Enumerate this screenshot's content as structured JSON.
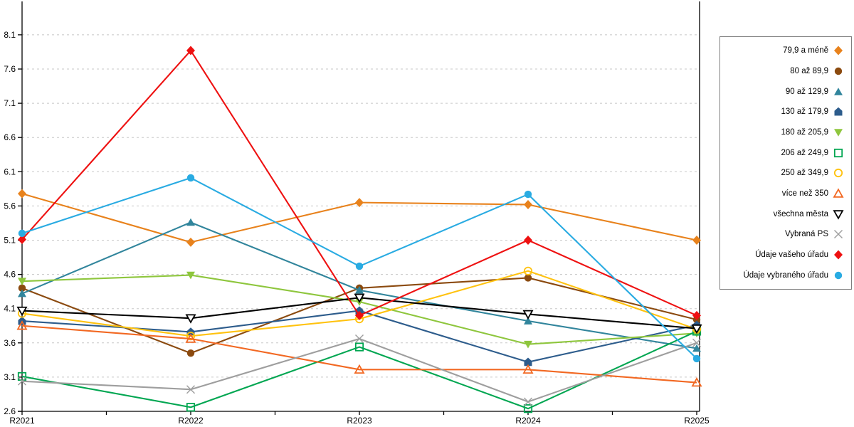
{
  "chart_data": {
    "type": "line",
    "title": "",
    "xlabel": "",
    "ylabel": "",
    "x_categories": [
      "R2021",
      "R2022",
      "R2023",
      "R2024",
      "R2025"
    ],
    "y_ticks": [
      2.6,
      3.1,
      3.6,
      4.1,
      4.6,
      5.1,
      5.6,
      6.1,
      6.6,
      7.1,
      7.6,
      8.1
    ],
    "ylim": [
      2.6,
      8.35
    ],
    "grid": "dashed-horizontal",
    "legend_position": "right",
    "colors": {
      "axis": "#000000",
      "gridline": "#c8c8c8",
      "legend_border": "#7f7f7f"
    },
    "series": [
      {
        "name": "79,9 a méně",
        "color": "#e8821c",
        "marker": "diamond",
        "fill_mode": "solid",
        "values": [
          5.78,
          5.07,
          5.65,
          5.62,
          5.1
        ]
      },
      {
        "name": "80 až 89,9",
        "color": "#8b4a0f",
        "marker": "circle",
        "fill_mode": "solid",
        "values": [
          4.4,
          3.45,
          4.4,
          4.55,
          3.94
        ]
      },
      {
        "name": "90 až 129,9",
        "color": "#31859c",
        "marker": "triangle-up",
        "fill_mode": "solid",
        "values": [
          4.32,
          5.36,
          4.37,
          3.92,
          3.52
        ]
      },
      {
        "name": "130 až 179,9",
        "color": "#2d5c8c",
        "marker": "pentagon",
        "fill_mode": "solid",
        "values": [
          3.92,
          3.76,
          4.07,
          3.32,
          3.86
        ]
      },
      {
        "name": "180 až 205,9",
        "color": "#8ec63d",
        "marker": "triangle-down",
        "fill_mode": "solid",
        "values": [
          4.5,
          4.59,
          4.2,
          3.58,
          3.74
        ]
      },
      {
        "name": "206 až 249,9",
        "color": "#00a651",
        "marker": "square",
        "fill_mode": "open",
        "values": [
          3.11,
          2.66,
          3.54,
          2.64,
          3.77
        ]
      },
      {
        "name": "250 až 349,9",
        "color": "#ffc20e",
        "marker": "circle",
        "fill_mode": "open",
        "values": [
          4.03,
          3.7,
          3.95,
          4.65,
          3.8
        ]
      },
      {
        "name": "více než 350",
        "color": "#f26822",
        "marker": "triangle-up",
        "fill_mode": "open",
        "values": [
          3.85,
          3.66,
          3.21,
          3.21,
          3.02
        ]
      },
      {
        "name": "všechna města",
        "color": "#000000",
        "marker": "triangle-down",
        "fill_mode": "white",
        "values": [
          4.07,
          3.96,
          4.26,
          4.02,
          3.81
        ]
      },
      {
        "name": "Vybraná PS",
        "color": "#9e9e9e",
        "marker": "x",
        "fill_mode": "open",
        "values": [
          3.04,
          2.92,
          3.66,
          2.74,
          3.6
        ]
      },
      {
        "name": "Údaje vašeho úřadu",
        "color": "#ee1111",
        "marker": "diamond",
        "fill_mode": "solid",
        "values": [
          5.11,
          7.87,
          4.0,
          5.1,
          4.0
        ]
      },
      {
        "name": "Údaje vybraného úřadu",
        "color": "#29abe2",
        "marker": "circle",
        "fill_mode": "solid",
        "values": [
          5.2,
          6.01,
          4.72,
          5.77,
          3.37
        ]
      }
    ]
  }
}
